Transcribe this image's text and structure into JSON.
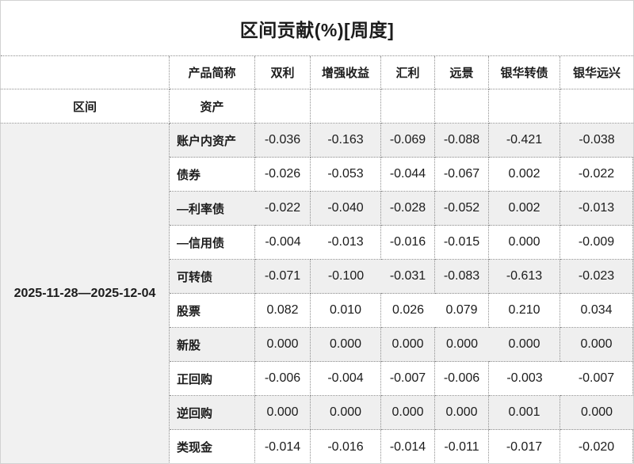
{
  "title": "区间贡献(%)[周度]",
  "colors": {
    "row_alt_background": "#efefef",
    "interval_cell_background": "#f1f1f1",
    "border_dotted": "#8e8e8e",
    "text": "#1c1c1c"
  },
  "table": {
    "corner_row1_label": "产品简称",
    "corner_row2_left_label": "区间",
    "corner_row2_label": "资产",
    "products": [
      "双利",
      "增强收益",
      "汇利",
      "远景",
      "银华转债",
      "银华远兴"
    ],
    "interval": "2025-11-28—2025-12-04",
    "rows": [
      {
        "label": "账户内资产",
        "values": [
          "-0.036",
          "-0.163",
          "-0.069",
          "-0.088",
          "-0.421",
          "-0.038"
        ]
      },
      {
        "label": "债券",
        "values": [
          "-0.026",
          "-0.053",
          "-0.044",
          "-0.067",
          "0.002",
          "-0.022"
        ]
      },
      {
        "label": "—利率债",
        "values": [
          "-0.022",
          "-0.040",
          "-0.028",
          "-0.052",
          "0.002",
          "-0.013"
        ]
      },
      {
        "label": "—信用债",
        "values": [
          "-0.004",
          "-0.013",
          "-0.016",
          "-0.015",
          "0.000",
          "-0.009"
        ]
      },
      {
        "label": "可转债",
        "values": [
          "-0.071",
          "-0.100",
          "-0.031",
          "-0.083",
          "-0.613",
          "-0.023"
        ]
      },
      {
        "label": "股票",
        "values": [
          "0.082",
          "0.010",
          "0.026",
          "0.079",
          "0.210",
          "0.034"
        ]
      },
      {
        "label": "新股",
        "values": [
          "0.000",
          "0.000",
          "0.000",
          "0.000",
          "0.000",
          "0.000"
        ]
      },
      {
        "label": "正回购",
        "values": [
          "-0.006",
          "-0.004",
          "-0.007",
          "-0.006",
          "-0.003",
          "-0.007"
        ]
      },
      {
        "label": "逆回购",
        "values": [
          "0.000",
          "0.000",
          "0.000",
          "0.000",
          "0.001",
          "0.000"
        ]
      },
      {
        "label": "类现金",
        "values": [
          "-0.014",
          "-0.016",
          "-0.014",
          "-0.011",
          "-0.017",
          "-0.020"
        ]
      }
    ]
  },
  "chart_data": {
    "type": "table",
    "title": "区间贡献(%)[周度]",
    "row_header": "资产",
    "column_header": "产品简称",
    "interval": "2025-11-28—2025-12-04",
    "columns": [
      "双利",
      "增强收益",
      "汇利",
      "远景",
      "银华转债",
      "银华远兴"
    ],
    "rows": [
      "账户内资产",
      "债券",
      "—利率债",
      "—信用债",
      "可转债",
      "股票",
      "新股",
      "正回购",
      "逆回购",
      "类现金"
    ],
    "values": [
      [
        -0.036,
        -0.163,
        -0.069,
        -0.088,
        -0.421,
        -0.038
      ],
      [
        -0.026,
        -0.053,
        -0.044,
        -0.067,
        0.002,
        -0.022
      ],
      [
        -0.022,
        -0.04,
        -0.028,
        -0.052,
        0.002,
        -0.013
      ],
      [
        -0.004,
        -0.013,
        -0.016,
        -0.015,
        0.0,
        -0.009
      ],
      [
        -0.071,
        -0.1,
        -0.031,
        -0.083,
        -0.613,
        -0.023
      ],
      [
        0.082,
        0.01,
        0.026,
        0.079,
        0.21,
        0.034
      ],
      [
        0.0,
        0.0,
        0.0,
        0.0,
        0.0,
        0.0
      ],
      [
        -0.006,
        -0.004,
        -0.007,
        -0.006,
        -0.003,
        -0.007
      ],
      [
        0.0,
        0.0,
        0.0,
        0.0,
        0.001,
        0.0
      ],
      [
        -0.014,
        -0.016,
        -0.014,
        -0.011,
        -0.017,
        -0.02
      ]
    ]
  }
}
